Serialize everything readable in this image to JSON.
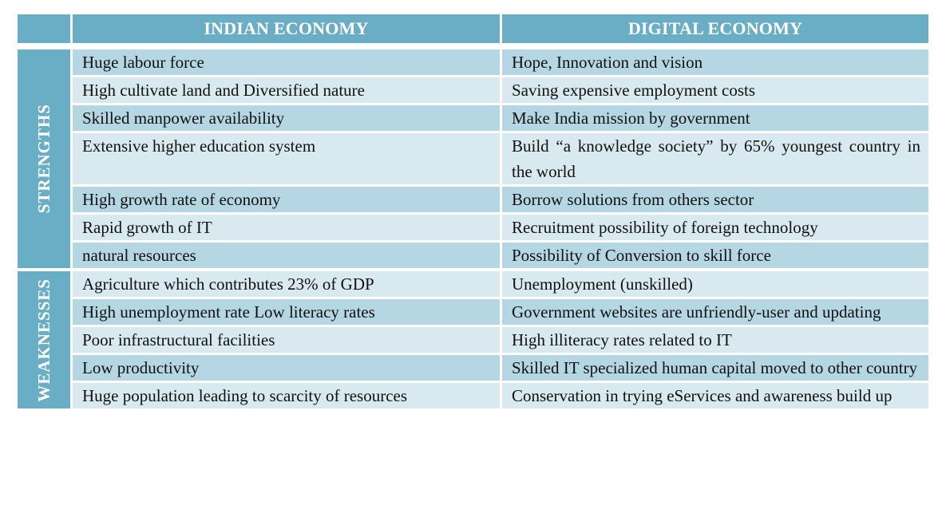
{
  "header": {
    "col1": "INDIAN ECONOMY",
    "col2": "DIGITAL ECONOMY"
  },
  "sections": [
    {
      "label": "STRENGTHS",
      "rows": [
        {
          "indian": "Huge labour force",
          "digital": "Hope, Innovation and vision"
        },
        {
          "indian": "High cultivate land  and Diversified nature",
          "digital": "Saving expensive employment costs"
        },
        {
          "indian": "Skilled manpower availability",
          "digital": "Make India mission by government"
        },
        {
          "indian": "Extensive higher education system",
          "digital": "Build “a knowledge society”  by 65% youngest country in the world"
        },
        {
          "indian": "High growth rate of economy",
          "digital": "Borrow solutions from others sector"
        },
        {
          "indian": "Rapid growth of IT",
          "digital": "Recruitment possibility of foreign technology"
        },
        {
          "indian": "natural resources",
          "digital": "Possibility of Conversion to skill force"
        }
      ]
    },
    {
      "label": "WEAKNESSES",
      "rows": [
        {
          "indian": "Agriculture which contributes 23% of GDP",
          "digital": "Unemployment (unskilled)"
        },
        {
          "indian": "High unemployment rate Low literacy rates",
          "digital": "Government websites are unfriendly-user and updating"
        },
        {
          "indian": "Poor infrastructural facilities",
          "digital": "High illiteracy rates related to IT"
        },
        {
          "indian": "Low productivity",
          "digital": "Skilled IT specialized human capital moved to other country"
        },
        {
          "indian": "Huge population leading to scarcity of resources",
          "digital": "Conservation in trying eServices and awareness build up"
        }
      ]
    }
  ]
}
